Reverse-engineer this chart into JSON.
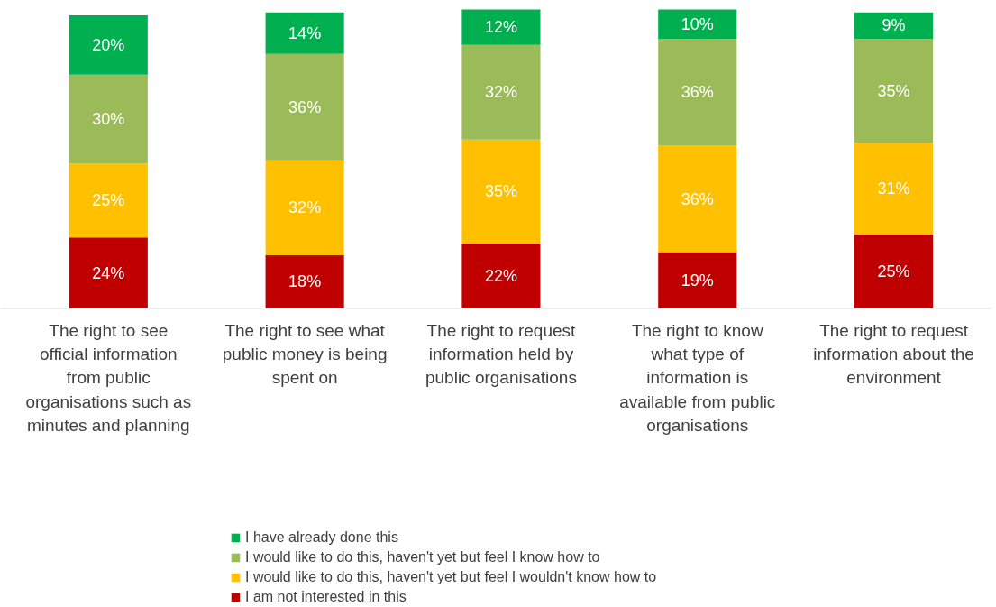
{
  "chart_data": {
    "type": "bar",
    "stacked": true,
    "legend": "bottom",
    "categories": [
      "The right to see official information from public organisations such as minutes and planning",
      "The right to see what public money is being spent on",
      "The right to request information held by public organisations",
      "The right to know what type of information is available from public organisations",
      "The right to request information about the environment"
    ],
    "series": [
      {
        "name": "I am not interested in this",
        "color": "#c00000",
        "values": [
          24,
          18,
          22,
          19,
          25
        ],
        "value_labels": [
          "24%",
          "18%",
          "22%",
          "19%",
          "25%"
        ]
      },
      {
        "name": "I would like to do this, haven't yet but feel I wouldn't know how to",
        "color": "#ffc000",
        "values": [
          25,
          32,
          35,
          36,
          31
        ],
        "value_labels": [
          "25%",
          "32%",
          "35%",
          "36%",
          "31%"
        ]
      },
      {
        "name": "I would like to do this, haven't yet but feel I know how to",
        "color": "#9bbb59",
        "values": [
          30,
          36,
          32,
          36,
          35
        ],
        "value_labels": [
          "30%",
          "36%",
          "32%",
          "36%",
          "35%"
        ]
      },
      {
        "name": "I have already done this",
        "color": "#00b050",
        "values": [
          20,
          14,
          12,
          10,
          9
        ],
        "value_labels": [
          "20%",
          "14%",
          "12%",
          "10%",
          "9%"
        ]
      }
    ]
  }
}
